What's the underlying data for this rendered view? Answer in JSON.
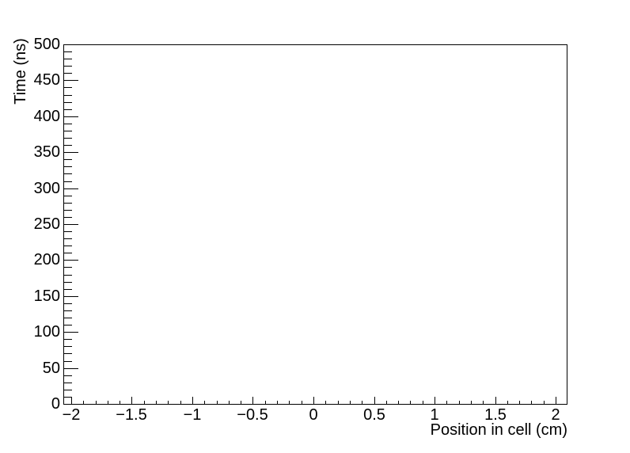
{
  "chart_data": {
    "type": "scatter",
    "title": "",
    "xlabel": "Position in cell (cm)",
    "ylabel": "Time (ns)",
    "xlim": [
      -2.065,
      2.091
    ],
    "ylim": [
      0,
      500
    ],
    "grid": false,
    "legend": null,
    "axis_color": "#000000",
    "text_color": "#000000",
    "background_color": "#ffffff",
    "x_axis": {
      "major_ticks": [
        -2,
        -1.5,
        -1,
        -0.5,
        0,
        0.5,
        1,
        1.5,
        2
      ],
      "major_labels": [
        "−2",
        "−1.5",
        "−1",
        "−0.5",
        "0",
        "0.5",
        "1",
        "1.5",
        "2"
      ],
      "minor_tick_step": 0.1,
      "minor_tick_range": [
        -2,
        2
      ]
    },
    "y_axis": {
      "major_ticks": [
        0,
        50,
        100,
        150,
        200,
        250,
        300,
        350,
        400,
        450,
        500
      ],
      "major_labels": [
        "0",
        "50",
        "100",
        "150",
        "200",
        "250",
        "300",
        "350",
        "400",
        "450",
        "500"
      ],
      "minor_tick_step": 10,
      "minor_tick_range": [
        0,
        500
      ]
    },
    "series": []
  }
}
